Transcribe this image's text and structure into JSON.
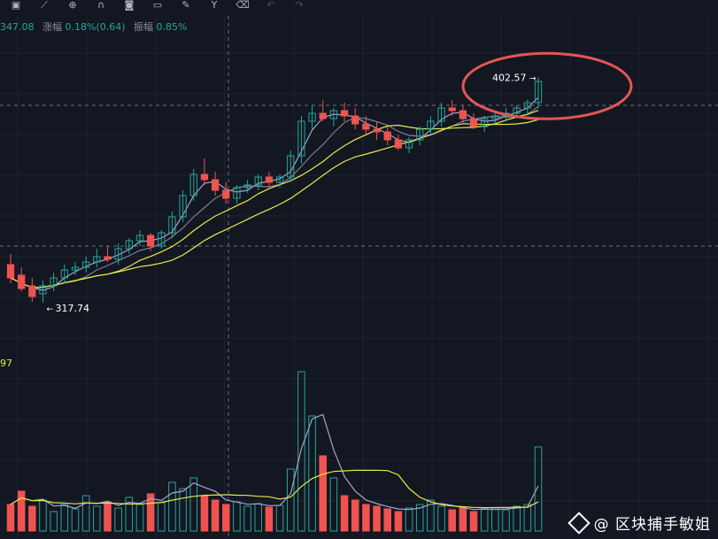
{
  "info": {
    "price_fragment": "347.08",
    "change_label": "涨幅",
    "change_value": "0.18%(0.64)",
    "amplitude_label": "振幅",
    "amplitude_value": "0.85%"
  },
  "toolbar": {
    "icons": [
      "save-icon",
      "ruler-icon",
      "zoom-in-icon",
      "magnet-icon",
      "camera-icon",
      "note-icon",
      "brush-icon",
      "fork-icon",
      "trash-icon",
      "undo-icon",
      "redo-icon"
    ]
  },
  "watermark": {
    "text": "@ 区块捕手敏姐"
  },
  "colors": {
    "background": "#131722",
    "up": "#26a69a",
    "down": "#ef5350",
    "ma_fast": "#a9a3c9",
    "ma_mid": "#7b7f91",
    "ma_slow": "#e8e84a",
    "annotation": "#e35656"
  },
  "chart_data": {
    "type": "candlestick",
    "title": "",
    "xlabel": "",
    "ylabel": "",
    "ylim": [
      300,
      420
    ],
    "annotations": {
      "high_label": "402.57",
      "low_label": "317.74",
      "left_edge_label": "97",
      "high_value": 402.57,
      "low_value": 317.74,
      "crosshair_price": 392,
      "reference_price": 339
    },
    "candles": [
      [
        332,
        336,
        325,
        327
      ],
      [
        328,
        331,
        322,
        323
      ],
      [
        324,
        327,
        318,
        320
      ],
      [
        321,
        326,
        317.74,
        324
      ],
      [
        324,
        329,
        322,
        327
      ],
      [
        327,
        332,
        325,
        330
      ],
      [
        330,
        333,
        328,
        331
      ],
      [
        331,
        335,
        329,
        333
      ],
      [
        333,
        338,
        331,
        335
      ],
      [
        335,
        339,
        333,
        334
      ],
      [
        334,
        340,
        332,
        338
      ],
      [
        338,
        342,
        336,
        341
      ],
      [
        341,
        345,
        339,
        343
      ],
      [
        343,
        344,
        337,
        339
      ],
      [
        339,
        345,
        338,
        344
      ],
      [
        344,
        352,
        342,
        350
      ],
      [
        350,
        360,
        348,
        358
      ],
      [
        358,
        368,
        356,
        366
      ],
      [
        366,
        372,
        362,
        364
      ],
      [
        364,
        367,
        358,
        360
      ],
      [
        360,
        363,
        355,
        357
      ],
      [
        357,
        362,
        355,
        361
      ],
      [
        361,
        364,
        359,
        362
      ],
      [
        362,
        366,
        360,
        365
      ],
      [
        365,
        367,
        361,
        363
      ],
      [
        363,
        366,
        361,
        365
      ],
      [
        365,
        375,
        363,
        373
      ],
      [
        373,
        388,
        370,
        386
      ],
      [
        386,
        392,
        383,
        389
      ],
      [
        389,
        394,
        386,
        387
      ],
      [
        387,
        391,
        384,
        390
      ],
      [
        390,
        393,
        386,
        388
      ],
      [
        388,
        391,
        383,
        385
      ],
      [
        385,
        388,
        381,
        383
      ],
      [
        383,
        386,
        379,
        382
      ],
      [
        382,
        384,
        377,
        379
      ],
      [
        379,
        381,
        375,
        376
      ],
      [
        376,
        380,
        374,
        379
      ],
      [
        379,
        384,
        377,
        383
      ],
      [
        383,
        388,
        381,
        386
      ],
      [
        386,
        393,
        384,
        391
      ],
      [
        391,
        394,
        388,
        390
      ],
      [
        390,
        392,
        385,
        387
      ],
      [
        387,
        389,
        383,
        384
      ],
      [
        384,
        388,
        382,
        387
      ],
      [
        387,
        390,
        385,
        388
      ],
      [
        388,
        391,
        386,
        389
      ],
      [
        389,
        392,
        387,
        391
      ],
      [
        391,
        394,
        388,
        393
      ],
      [
        393,
        402.57,
        391,
        401
      ]
    ],
    "volume": [
      30,
      45,
      28,
      35,
      22,
      30,
      25,
      40,
      28,
      33,
      26,
      38,
      30,
      42,
      32,
      55,
      48,
      60,
      40,
      35,
      30,
      33,
      28,
      31,
      27,
      29,
      70,
      180,
      130,
      85,
      60,
      40,
      35,
      30,
      28,
      25,
      22,
      26,
      30,
      35,
      28,
      24,
      27,
      22,
      25,
      26,
      24,
      28,
      30,
      95
    ]
  }
}
